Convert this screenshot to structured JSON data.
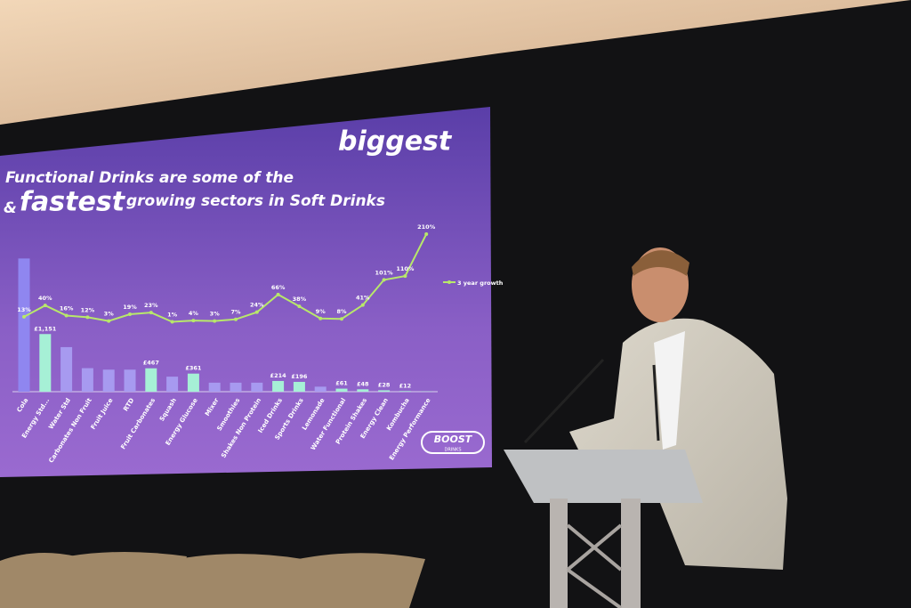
{
  "chart_data": {
    "type": "bar",
    "title": [
      "Functional Drinks are some of the",
      "biggest",
      "&",
      "fastest",
      "growing sectors in Soft Drinks"
    ],
    "categories": [
      "Cola",
      "Energy Std...",
      "Water Std",
      "Carbonates Non Fruit",
      "Fruit Juice",
      "RTD",
      "Fruit Carbonates",
      "Squash",
      "Energy Glucose",
      "Mixer",
      "Smoothies",
      "Shakes Non Protein",
      "Iced Drinks",
      "Sports Drinks",
      "Lemonade",
      "Water Functional",
      "Protein Shakes",
      "Energy Clean",
      "Kombucha",
      "Energy Performance"
    ],
    "ylim": [
      0,
      3200
    ],
    "y2lim": [
      0,
      210
    ],
    "series": [
      {
        "values": [
          2660,
          1151,
          890,
          470,
          440,
          440,
          467,
          300,
          361,
          180,
          180,
          180,
          214,
          196,
          100,
          61,
          48,
          28,
          12,
          5
        ],
        "value_labels": [
          null,
          "£1,151",
          null,
          null,
          null,
          null,
          "£467",
          null,
          "£361",
          null,
          null,
          null,
          "£214",
          "£196",
          null,
          "£61",
          "£48",
          "£28",
          "£12",
          null
        ],
        "colors": [
          "#8f86f0",
          "#a6f0d6",
          "#a79af0",
          "#a79af0",
          "#a79af0",
          "#a79af0",
          "#a6f0d6",
          "#a79af0",
          "#a6f0d6",
          "#a79af0",
          "#a79af0",
          "#a79af0",
          "#a6f0d6",
          "#a6f0d6",
          "#a79af0",
          "#a6f0d6",
          "#a6f0d6",
          "#a6f0d6",
          "#a6f0d6",
          "#a6f0d6"
        ]
      },
      {
        "name": "3 year growth",
        "color": "#b8e86a",
        "axis": "y2",
        "values": [
          13,
          40,
          16,
          12,
          3,
          19,
          23,
          1,
          4,
          3,
          7,
          24,
          66,
          38,
          9,
          8,
          41,
          101,
          110,
          210
        ],
        "value_labels": [
          "13%",
          "40%",
          "16%",
          "12%",
          "3%",
          "19%",
          "23%",
          "1%",
          "4%",
          "3%",
          "7%",
          "24%",
          "66%",
          "38%",
          "9%",
          "8%",
          "41%",
          "101%",
          "110%",
          "210%"
        ]
      }
    ]
  },
  "logo": {
    "name": "BOOST",
    "sub": "DRINKS"
  }
}
